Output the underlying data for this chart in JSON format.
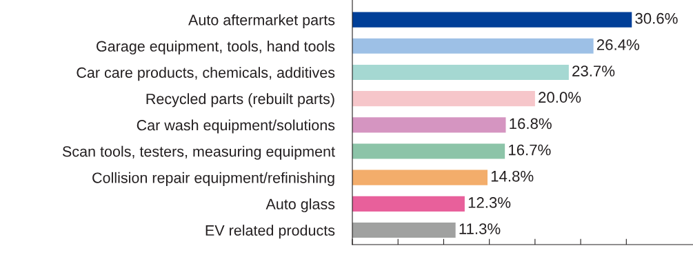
{
  "chart_data": {
    "type": "bar",
    "orientation": "horizontal",
    "categories": [
      "Auto aftermarket parts",
      "Garage equipment, tools, hand tools",
      "Car care products, chemicals, additives",
      "Recycled parts (rebuilt parts)",
      "Car wash equipment/solutions",
      "Scan tools, testers, measuring equipment",
      "Collision repair equipment/refinishing",
      "Auto glass",
      "EV related products"
    ],
    "values": [
      30.6,
      26.4,
      23.7,
      20.0,
      16.8,
      16.7,
      14.8,
      12.3,
      11.3
    ],
    "value_labels": [
      "30.6%",
      "26.4%",
      "23.7%",
      "20.0%",
      "16.8%",
      "16.7%",
      "14.8%",
      "12.3%",
      "11.3%"
    ],
    "colors": [
      "#003f98",
      "#9dc0e6",
      "#a5d8d2",
      "#f6c6ca",
      "#d595c1",
      "#8cc4a8",
      "#f3ad6b",
      "#e8609b",
      "#a0a1a0"
    ],
    "xlim": [
      0,
      37.3
    ],
    "xticks": [
      {
        "value": 0,
        "label": null
      },
      {
        "value": 5,
        "label": null
      },
      {
        "value": 10,
        "label": null
      },
      {
        "value": 15,
        "label": null
      },
      {
        "value": 20,
        "label": null
      },
      {
        "value": 25,
        "label": null
      },
      {
        "value": 30,
        "label": null
      }
    ],
    "tick_labels": "y",
    "grid": false,
    "legend": false
  }
}
